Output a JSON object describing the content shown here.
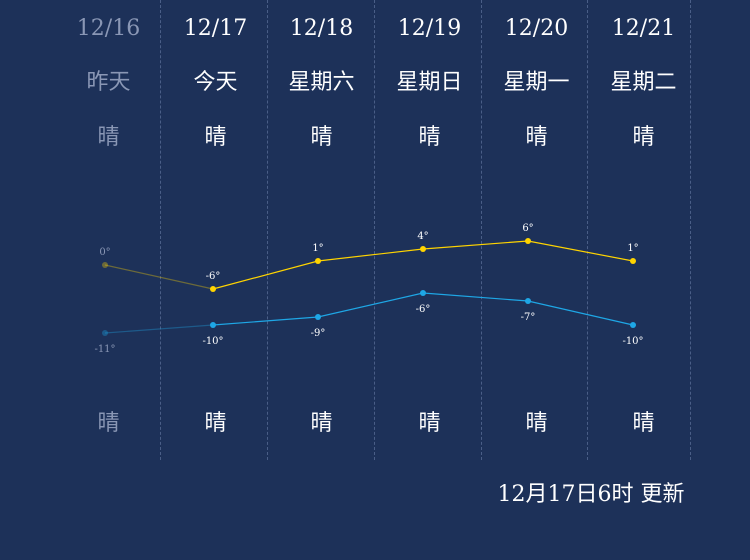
{
  "colors": {
    "background": "#1d3159",
    "high_line": "#ffd400",
    "low_line": "#1ea7e6",
    "past_text": "#8a97b5",
    "text": "#ffffff"
  },
  "days": [
    {
      "date": "12/16",
      "weekday": "昨天",
      "day_condition": "晴",
      "night_condition": "晴",
      "high": 0,
      "low": -11,
      "high_label": "0°",
      "low_label": "-11°",
      "past": true
    },
    {
      "date": "12/17",
      "weekday": "今天",
      "day_condition": "晴",
      "night_condition": "晴",
      "high": -6,
      "low": -10,
      "high_label": "-6°",
      "low_label": "-10°",
      "past": false
    },
    {
      "date": "12/18",
      "weekday": "星期六",
      "day_condition": "晴",
      "night_condition": "晴",
      "high": 1,
      "low": -9,
      "high_label": "1°",
      "low_label": "-9°",
      "past": false
    },
    {
      "date": "12/19",
      "weekday": "星期日",
      "day_condition": "晴",
      "night_condition": "晴",
      "high": 4,
      "low": -6,
      "high_label": "4°",
      "low_label": "-6°",
      "past": false
    },
    {
      "date": "12/20",
      "weekday": "星期一",
      "day_condition": "晴",
      "night_condition": "晴",
      "high": 6,
      "low": -7,
      "high_label": "6°",
      "low_label": "-7°",
      "past": false
    },
    {
      "date": "12/21",
      "weekday": "星期二",
      "day_condition": "晴",
      "night_condition": "晴",
      "high": 1,
      "low": -10,
      "high_label": "1°",
      "low_label": "-10°",
      "past": false
    }
  ],
  "update_text": "12月17日6时 更新"
}
